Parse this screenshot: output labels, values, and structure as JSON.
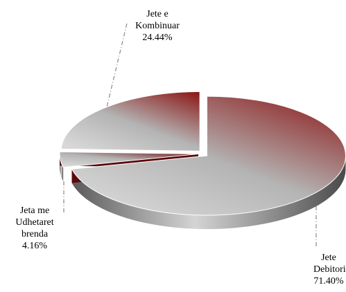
{
  "chart_data": {
    "type": "pie3d",
    "categories": [
      "Jete Debitori",
      "Jeta me Udhetaret brenda",
      "Jete e Kombinuar"
    ],
    "values": [
      71.4,
      4.16,
      24.44
    ],
    "value_labels": [
      "71.40%",
      "4.16%",
      "24.44%"
    ],
    "colors": [
      "#8b1414",
      "#6e0c0c",
      "#8b1414"
    ]
  }
}
